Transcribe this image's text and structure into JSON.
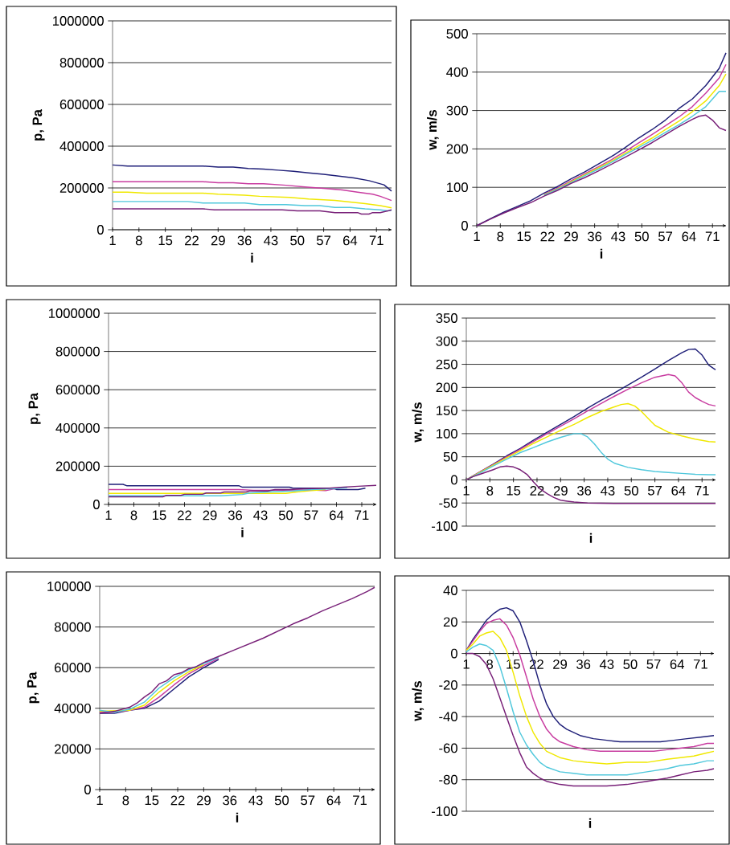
{
  "chart_data": [
    {
      "type": "line",
      "xlabel": "i",
      "ylabel": "p,  Pa",
      "xlim": [
        1,
        75
      ],
      "xticks": [
        1,
        8,
        15,
        22,
        29,
        36,
        43,
        50,
        57,
        64,
        71
      ],
      "ylim": [
        0,
        1000000
      ],
      "yticks": [
        0,
        200000,
        400000,
        600000,
        800000,
        1000000
      ],
      "grid": "y",
      "series": [
        {
          "color": "#1f1f78",
          "x": [
            1,
            5,
            9,
            13,
            17,
            21,
            25,
            29,
            33,
            37,
            41,
            45,
            49,
            53,
            57,
            61,
            65,
            69,
            73,
            75
          ],
          "values": [
            310000,
            305000,
            305000,
            305000,
            305000,
            305000,
            305000,
            300000,
            300000,
            293000,
            290000,
            285000,
            280000,
            272000,
            265000,
            257000,
            248000,
            235000,
            215000,
            185000
          ]
        },
        {
          "color": "#c83ca0",
          "x": [
            1,
            5,
            9,
            13,
            17,
            21,
            25,
            29,
            33,
            37,
            41,
            47,
            52,
            57,
            62,
            66,
            70,
            72,
            75
          ],
          "values": [
            230000,
            230000,
            230000,
            230000,
            230000,
            230000,
            230000,
            225000,
            225000,
            220000,
            220000,
            213000,
            205000,
            198000,
            190000,
            180000,
            170000,
            160000,
            140000
          ]
        },
        {
          "color": "#f0e800",
          "x": [
            1,
            5,
            10,
            15,
            20,
            25,
            29,
            36,
            40,
            48,
            53,
            60,
            64,
            68,
            72,
            75
          ],
          "values": [
            180000,
            180000,
            175000,
            175000,
            175000,
            175000,
            170000,
            165000,
            160000,
            155000,
            147000,
            140000,
            133000,
            125000,
            115000,
            105000
          ]
        },
        {
          "color": "#50c8dc",
          "x": [
            1,
            10,
            21,
            25,
            36,
            40,
            47,
            52,
            56,
            60,
            64,
            68,
            72,
            74,
            75
          ],
          "values": [
            135000,
            135000,
            135000,
            128000,
            128000,
            120000,
            120000,
            115000,
            115000,
            107000,
            107000,
            100000,
            95000,
            90000,
            93000
          ]
        },
        {
          "color": "#782078",
          "x": [
            1,
            10,
            25,
            28,
            40,
            46,
            50,
            56,
            60,
            66,
            67,
            69,
            70,
            72,
            74,
            75
          ],
          "values": [
            100000,
            100000,
            100000,
            95000,
            95000,
            95000,
            90000,
            90000,
            82000,
            82000,
            75000,
            75000,
            82000,
            82000,
            90000,
            95000
          ]
        }
      ]
    },
    {
      "type": "line",
      "xlabel": "i",
      "ylabel": "w,  m/s",
      "xlim": [
        1,
        75
      ],
      "xticks": [
        1,
        8,
        15,
        22,
        29,
        36,
        43,
        50,
        57,
        64,
        71
      ],
      "ylim": [
        0,
        500
      ],
      "yticks": [
        0,
        100,
        200,
        300,
        400,
        500
      ],
      "grid": "y",
      "series": [
        {
          "color": "#1f1f78",
          "x": [
            1,
            5,
            9,
            13,
            17,
            21,
            25,
            29,
            33,
            37,
            41,
            45,
            49,
            53,
            57,
            61,
            65,
            69,
            73,
            75
          ],
          "values": [
            0,
            18,
            35,
            50,
            65,
            85,
            102,
            122,
            140,
            160,
            180,
            203,
            228,
            250,
            275,
            305,
            330,
            365,
            410,
            450
          ]
        },
        {
          "color": "#c83ca0",
          "x": [
            21,
            25,
            29,
            33,
            37,
            41,
            45,
            49,
            53,
            57,
            61,
            65,
            69,
            73,
            75
          ],
          "values": [
            82,
            98,
            117,
            135,
            153,
            172,
            193,
            215,
            237,
            260,
            283,
            310,
            345,
            385,
            420
          ]
        },
        {
          "color": "#f0e800",
          "x": [
            21,
            25,
            29,
            33,
            37,
            41,
            45,
            49,
            53,
            57,
            61,
            65,
            69,
            73,
            75
          ],
          "values": [
            80,
            96,
            114,
            132,
            150,
            168,
            188,
            208,
            228,
            250,
            272,
            297,
            325,
            365,
            395
          ]
        },
        {
          "color": "#50c8dc",
          "x": [
            21,
            25,
            29,
            33,
            37,
            41,
            45,
            49,
            53,
            57,
            61,
            65,
            69,
            73,
            75
          ],
          "values": [
            79,
            95,
            112,
            130,
            147,
            165,
            185,
            203,
            222,
            243,
            263,
            285,
            310,
            350,
            350
          ]
        },
        {
          "color": "#782078",
          "x": [
            1,
            5,
            9,
            13,
            17,
            21,
            25,
            29,
            33,
            37,
            41,
            45,
            49,
            53,
            57,
            61,
            65,
            67,
            69,
            71,
            73,
            75
          ],
          "values": [
            0,
            17,
            33,
            47,
            60,
            77,
            92,
            110,
            125,
            142,
            160,
            178,
            197,
            216,
            237,
            258,
            277,
            285,
            288,
            275,
            255,
            248
          ]
        }
      ]
    },
    {
      "type": "line",
      "xlabel": "i",
      "ylabel": "p,  Pa",
      "xlim": [
        1,
        75
      ],
      "xticks": [
        1,
        8,
        15,
        22,
        29,
        36,
        43,
        50,
        57,
        64,
        71
      ],
      "ylim": [
        0,
        1000000
      ],
      "yticks": [
        0,
        200000,
        400000,
        600000,
        800000,
        1000000
      ],
      "grid": "y",
      "series": [
        {
          "color": "#1f1f78",
          "x": [
            1,
            5,
            6,
            20,
            37,
            38,
            51,
            52,
            63,
            64,
            70,
            72
          ],
          "values": [
            105000,
            105000,
            98000,
            98000,
            98000,
            90000,
            90000,
            85000,
            85000,
            78000,
            78000,
            85000
          ]
        },
        {
          "color": "#c83ca0",
          "x": [
            1,
            20,
            37,
            41,
            49,
            53,
            57,
            61,
            65
          ],
          "values": [
            78000,
            78000,
            78000,
            74000,
            74000,
            75000,
            75000,
            72000,
            88000
          ]
        },
        {
          "color": "#f0e800",
          "x": [
            1,
            20,
            40,
            50,
            53,
            57,
            61
          ],
          "values": [
            58000,
            58000,
            58000,
            58000,
            65000,
            72000,
            78000
          ]
        },
        {
          "color": "#50c8dc",
          "x": [
            1,
            20,
            32,
            38,
            40,
            45,
            52,
            57,
            63,
            67
          ],
          "values": [
            45000,
            45000,
            45000,
            52000,
            60000,
            65000,
            70000,
            78000,
            82000,
            88000
          ]
        },
        {
          "color": "#782078",
          "x": [
            1,
            16,
            17,
            21,
            22,
            27,
            28,
            32,
            33,
            39,
            40,
            45,
            47,
            51,
            55,
            62,
            66,
            70,
            75
          ],
          "values": [
            40000,
            40000,
            47000,
            47000,
            53000,
            53000,
            60000,
            60000,
            65000,
            65000,
            70000,
            70000,
            78000,
            78000,
            82000,
            85000,
            90000,
            95000,
            100000
          ]
        }
      ]
    },
    {
      "type": "line",
      "xlabel": "i",
      "ylabel": "w,  m/s",
      "xlim": [
        1,
        75
      ],
      "xticks": [
        1,
        8,
        15,
        22,
        29,
        36,
        43,
        50,
        57,
        64,
        71
      ],
      "ylim": [
        -100,
        350
      ],
      "yticks": [
        -100,
        -50,
        0,
        50,
        100,
        150,
        200,
        250,
        300,
        350
      ],
      "grid": "y",
      "series": [
        {
          "color": "#1f1f78",
          "x": [
            1,
            5,
            9,
            13,
            17,
            21,
            25,
            29,
            33,
            37,
            41,
            45,
            49,
            53,
            57,
            61,
            65,
            67,
            69,
            71,
            73,
            75
          ],
          "values": [
            0,
            17,
            34,
            52,
            68,
            86,
            103,
            120,
            137,
            155,
            172,
            188,
            205,
            222,
            240,
            258,
            275,
            282,
            283,
            270,
            248,
            238
          ]
        },
        {
          "color": "#c83ca0",
          "x": [
            1,
            5,
            9,
            13,
            17,
            21,
            25,
            29,
            33,
            37,
            41,
            45,
            49,
            53,
            57,
            61,
            63,
            65,
            67,
            69,
            71,
            73,
            75
          ],
          "values": [
            0,
            17,
            33,
            50,
            66,
            83,
            100,
            116,
            132,
            149,
            165,
            181,
            196,
            210,
            222,
            228,
            225,
            210,
            190,
            178,
            170,
            163,
            160
          ]
        },
        {
          "color": "#f0e800",
          "x": [
            1,
            5,
            9,
            13,
            17,
            21,
            25,
            29,
            33,
            37,
            41,
            45,
            47,
            49,
            51,
            53,
            55,
            57,
            61,
            65,
            69,
            73,
            75
          ],
          "values": [
            0,
            16,
            32,
            48,
            63,
            79,
            93,
            107,
            120,
            135,
            148,
            158,
            163,
            165,
            160,
            148,
            133,
            118,
            103,
            95,
            88,
            83,
            82
          ]
        },
        {
          "color": "#50c8dc",
          "x": [
            1,
            5,
            9,
            13,
            17,
            21,
            25,
            29,
            33,
            35,
            37,
            39,
            41,
            43,
            45,
            49,
            53,
            57,
            61,
            65,
            69,
            73,
            75
          ],
          "values": [
            0,
            15,
            30,
            45,
            59,
            70,
            82,
            92,
            100,
            100,
            93,
            78,
            60,
            45,
            36,
            27,
            22,
            18,
            16,
            14,
            12,
            11,
            11
          ]
        },
        {
          "color": "#782078",
          "x": [
            1,
            3,
            5,
            9,
            11,
            13,
            15,
            17,
            19,
            21,
            23,
            25,
            27,
            29,
            31,
            33,
            37,
            45,
            55,
            65,
            75
          ],
          "values": [
            0,
            7,
            12,
            22,
            28,
            30,
            28,
            22,
            12,
            -5,
            -20,
            -30,
            -38,
            -44,
            -46,
            -48,
            -50,
            -51,
            -51,
            -51,
            -51
          ]
        }
      ]
    },
    {
      "type": "line",
      "xlabel": "i",
      "ylabel": "p,  Pa",
      "xlim": [
        1,
        75
      ],
      "xticks": [
        1,
        8,
        15,
        22,
        29,
        36,
        43,
        50,
        57,
        64,
        71
      ],
      "ylim": [
        0,
        100000
      ],
      "yticks": [
        0,
        20000,
        40000,
        60000,
        80000,
        100000
      ],
      "grid": "y",
      "series": [
        {
          "color": "#1f1f78",
          "x": [
            1,
            5,
            9,
            13,
            17,
            21,
            25,
            29,
            33
          ],
          "values": [
            37500,
            37500,
            39000,
            40000,
            43500,
            49500,
            55500,
            60000,
            64000
          ]
        },
        {
          "color": "#c83ca0",
          "x": [
            1,
            5,
            9,
            13,
            17,
            21,
            25,
            29,
            33
          ],
          "values": [
            38000,
            38000,
            39000,
            40500,
            45500,
            51500,
            57000,
            61000,
            64500
          ]
        },
        {
          "color": "#f0e800",
          "x": [
            1,
            9,
            13,
            17,
            21,
            25,
            29
          ],
          "values": [
            38500,
            39000,
            41500,
            48000,
            53500,
            58000,
            61500
          ]
        },
        {
          "color": "#50c8dc",
          "x": [
            1,
            5,
            9,
            13,
            17,
            21,
            25,
            29,
            33
          ],
          "values": [
            39000,
            38000,
            39500,
            43000,
            50000,
            55000,
            59000,
            62000,
            65000
          ]
        },
        {
          "color": "#782078",
          "x": [
            1,
            5,
            9,
            11,
            13,
            15,
            17,
            19,
            21,
            23,
            25,
            27,
            29,
            33,
            37,
            41,
            45,
            49,
            53,
            57,
            61,
            65,
            69,
            73,
            75
          ],
          "values": [
            37500,
            38500,
            40500,
            42500,
            45500,
            48000,
            52000,
            53500,
            56500,
            57500,
            59500,
            60500,
            62500,
            65500,
            68500,
            71500,
            74500,
            78000,
            81500,
            84500,
            88000,
            91000,
            94000,
            97500,
            99500
          ]
        }
      ]
    },
    {
      "type": "line",
      "xlabel": "i",
      "ylabel": "w,  m/s",
      "xlim": [
        1,
        75
      ],
      "xticks": [
        1,
        8,
        15,
        22,
        29,
        36,
        43,
        50,
        57,
        64,
        71
      ],
      "ylim": [
        -100,
        40
      ],
      "yticks": [
        -100,
        -80,
        -60,
        -40,
        -20,
        0,
        20,
        40
      ],
      "grid": "y",
      "series": [
        {
          "color": "#1f1f78",
          "x": [
            1,
            3,
            5,
            7,
            9,
            11,
            13,
            15,
            17,
            19,
            21,
            23,
            25,
            27,
            29,
            31,
            35,
            39,
            43,
            47,
            51,
            55,
            59,
            63,
            67,
            71,
            75
          ],
          "values": [
            2,
            9,
            15,
            21,
            25,
            28,
            29,
            27,
            20,
            8,
            -5,
            -20,
            -32,
            -40,
            -45,
            -48,
            -52,
            -54,
            -55,
            -56,
            -56,
            -56,
            -56,
            -55,
            -54,
            -53,
            -52
          ]
        },
        {
          "color": "#c83ca0",
          "x": [
            1,
            3,
            5,
            7,
            9,
            11,
            13,
            15,
            17,
            19,
            21,
            23,
            25,
            27,
            29,
            33,
            37,
            41,
            51,
            57,
            61,
            65,
            69,
            73,
            75
          ],
          "values": [
            2,
            8,
            14,
            19,
            21,
            22,
            18,
            10,
            -1,
            -15,
            -29,
            -40,
            -48,
            -53,
            -56,
            -59,
            -61,
            -62,
            -62,
            -62,
            -61,
            -60,
            -59,
            -57,
            -57
          ]
        },
        {
          "color": "#f0e800",
          "x": [
            1,
            3,
            5,
            7,
            9,
            11,
            13,
            15,
            17,
            19,
            21,
            23,
            25,
            29,
            33,
            37,
            43,
            49,
            55,
            61,
            65,
            69,
            73,
            75
          ],
          "values": [
            2,
            6,
            11,
            13,
            14,
            10,
            2,
            -12,
            -27,
            -40,
            -50,
            -57,
            -62,
            -66,
            -68,
            -69,
            -70,
            -69,
            -69,
            -67,
            -66,
            -65,
            -63,
            -62
          ]
        },
        {
          "color": "#50c8dc",
          "x": [
            1,
            3,
            5,
            7,
            9,
            11,
            13,
            15,
            17,
            19,
            21,
            23,
            25,
            29,
            33,
            37,
            43,
            49,
            55,
            61,
            65,
            69,
            73,
            75
          ],
          "values": [
            1,
            4,
            6,
            5,
            2,
            -8,
            -22,
            -37,
            -50,
            -58,
            -64,
            -69,
            -72,
            -75,
            -76,
            -77,
            -77,
            -77,
            -75,
            -73,
            -71,
            -70,
            -68,
            -68
          ]
        },
        {
          "color": "#782078",
          "x": [
            1,
            3,
            5,
            7,
            9,
            11,
            13,
            15,
            17,
            19,
            21,
            23,
            25,
            29,
            33,
            37,
            43,
            49,
            55,
            61,
            65,
            69,
            73,
            75
          ],
          "values": [
            0,
            0,
            -2,
            -7,
            -16,
            -28,
            -40,
            -52,
            -63,
            -72,
            -76,
            -79,
            -81,
            -83,
            -84,
            -84,
            -84,
            -83,
            -81,
            -79,
            -77,
            -75,
            -74,
            -73
          ]
        }
      ]
    }
  ]
}
